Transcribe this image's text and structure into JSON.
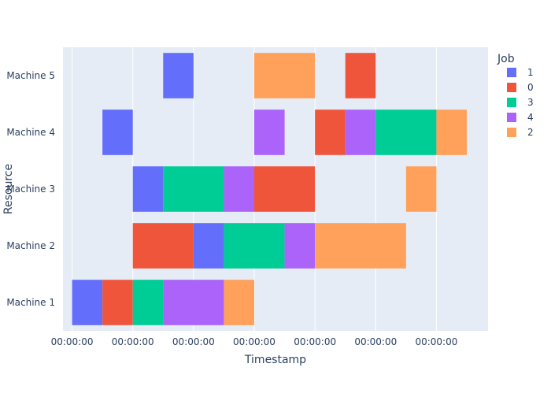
{
  "chart_data": {
    "type": "bar",
    "orientation": "horizontal-timeline",
    "xlabel": "Timestamp",
    "ylabel": "Resource",
    "x_tick_labels": [
      "00:00:00",
      "00:00:00",
      "00:00:00",
      "00:00:00",
      "00:00:00",
      "00:00:00",
      "00:00:00"
    ],
    "x_ticks": [
      0,
      2,
      4,
      6,
      8,
      10,
      12
    ],
    "xlim": [
      -0.3,
      13.7
    ],
    "categories": [
      "Machine 1",
      "Machine 2",
      "Machine 3",
      "Machine 4",
      "Machine 5"
    ],
    "legend": {
      "title": "Job",
      "position": "top-right",
      "items": [
        "1",
        "0",
        "3",
        "4",
        "2"
      ]
    },
    "colors": {
      "1": "#636efa",
      "0": "#ef553b",
      "3": "#00cc96",
      "4": "#ab63fa",
      "2": "#ffa15a"
    },
    "background": "#e5ecf6",
    "grid": true,
    "tasks": [
      {
        "resource": "Machine 1",
        "job": "1",
        "start": 0,
        "end": 1
      },
      {
        "resource": "Machine 1",
        "job": "0",
        "start": 1,
        "end": 2
      },
      {
        "resource": "Machine 1",
        "job": "3",
        "start": 2,
        "end": 3
      },
      {
        "resource": "Machine 1",
        "job": "4",
        "start": 3,
        "end": 5
      },
      {
        "resource": "Machine 1",
        "job": "2",
        "start": 5,
        "end": 6
      },
      {
        "resource": "Machine 2",
        "job": "0",
        "start": 2,
        "end": 4
      },
      {
        "resource": "Machine 2",
        "job": "1",
        "start": 4,
        "end": 5
      },
      {
        "resource": "Machine 2",
        "job": "3",
        "start": 5,
        "end": 7
      },
      {
        "resource": "Machine 2",
        "job": "4",
        "start": 7,
        "end": 8
      },
      {
        "resource": "Machine 2",
        "job": "2",
        "start": 8,
        "end": 11
      },
      {
        "resource": "Machine 3",
        "job": "1",
        "start": 2,
        "end": 3
      },
      {
        "resource": "Machine 3",
        "job": "3",
        "start": 3,
        "end": 5
      },
      {
        "resource": "Machine 3",
        "job": "4",
        "start": 5,
        "end": 6
      },
      {
        "resource": "Machine 3",
        "job": "0",
        "start": 6,
        "end": 8
      },
      {
        "resource": "Machine 3",
        "job": "2",
        "start": 11,
        "end": 12
      },
      {
        "resource": "Machine 4",
        "job": "1",
        "start": 1,
        "end": 2
      },
      {
        "resource": "Machine 4",
        "job": "4",
        "start": 6,
        "end": 7
      },
      {
        "resource": "Machine 4",
        "job": "0",
        "start": 8,
        "end": 9
      },
      {
        "resource": "Machine 4",
        "job": "4",
        "start": 9,
        "end": 10
      },
      {
        "resource": "Machine 4",
        "job": "3",
        "start": 10,
        "end": 12
      },
      {
        "resource": "Machine 4",
        "job": "2",
        "start": 12,
        "end": 13
      },
      {
        "resource": "Machine 5",
        "job": "1",
        "start": 3,
        "end": 4
      },
      {
        "resource": "Machine 5",
        "job": "2",
        "start": 6,
        "end": 8
      },
      {
        "resource": "Machine 5",
        "job": "0",
        "start": 9,
        "end": 10
      }
    ]
  }
}
